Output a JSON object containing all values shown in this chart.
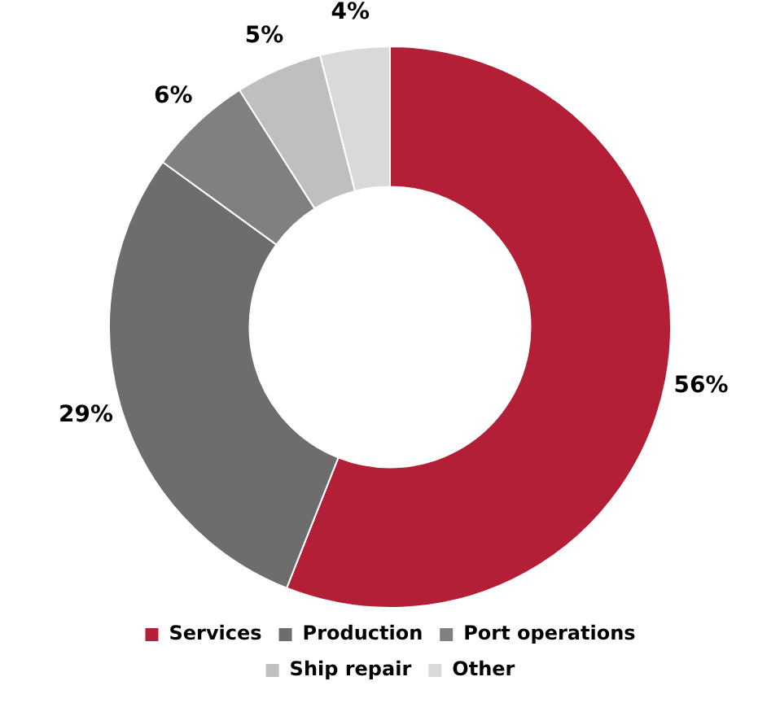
{
  "chart_data": {
    "type": "donut",
    "categories": [
      "Services",
      "Production",
      "Port operations",
      "Ship repair",
      "Other"
    ],
    "values": [
      56,
      29,
      6,
      5,
      4
    ],
    "colors": [
      "#b31f37",
      "#6d6d6d",
      "#808080",
      "#bfbfbf",
      "#d9d9d9"
    ],
    "value_labels": [
      "56%",
      "29%",
      "6%",
      "5%",
      "4%"
    ],
    "legend": "bottom"
  }
}
